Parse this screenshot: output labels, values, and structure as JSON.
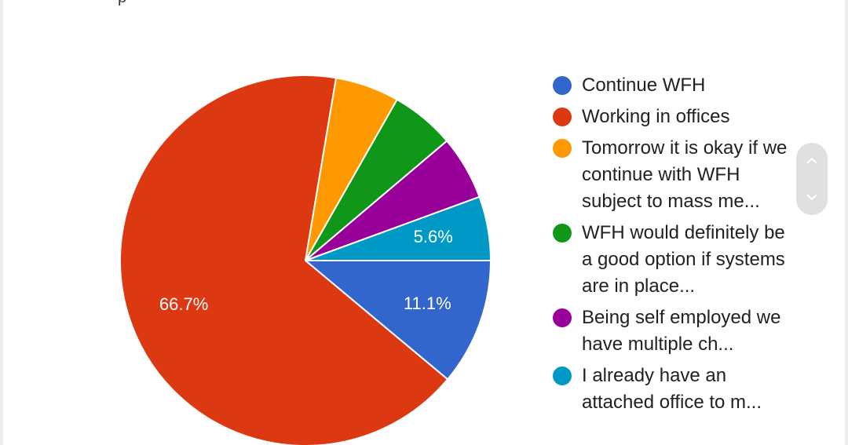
{
  "header": {
    "clipped_text": "p"
  },
  "chart_data": {
    "type": "pie",
    "slices": [
      {
        "label": "Continue WFH",
        "value": 11.1,
        "display": "11.1%",
        "color": "#3366cc"
      },
      {
        "label": "Working in offices",
        "value": 66.7,
        "display": "66.7%",
        "color": "#dc3912"
      },
      {
        "label": "Tomorrow it is okay if we continue with WFH subject to mass me...",
        "value": 5.6,
        "display": "",
        "color": "#ff9900"
      },
      {
        "label": "WFH would definitely be a good option if systems are in place...",
        "value": 5.6,
        "display": "",
        "color": "#109618"
      },
      {
        "label": "Being self employed we have multiple ch...",
        "value": 5.6,
        "display": "",
        "color": "#990099"
      },
      {
        "label": "I already have an attached office to m...",
        "value": 5.6,
        "display": "5.6%",
        "color": "#0099c6"
      }
    ],
    "start_angle_deg": 90,
    "direction": "clockwise",
    "legend_position": "right"
  },
  "legend": {
    "items": [
      {
        "label": "Continue WFH",
        "color": "#3366cc"
      },
      {
        "label": "Working in offices",
        "color": "#dc3912"
      },
      {
        "label": "Tomorrow it is okay if we continue with WFH subject to mass me...",
        "color": "#ff9900"
      },
      {
        "label": "WFH would definitely be a good option if systems are in place...",
        "color": "#109618"
      },
      {
        "label": "Being self employed we have multiple ch...",
        "color": "#990099"
      },
      {
        "label": "I already have an attached office to m...",
        "color": "#0099c6"
      }
    ]
  },
  "pager": {
    "up_icon": "chevron-up-icon",
    "down_icon": "chevron-down-icon"
  }
}
